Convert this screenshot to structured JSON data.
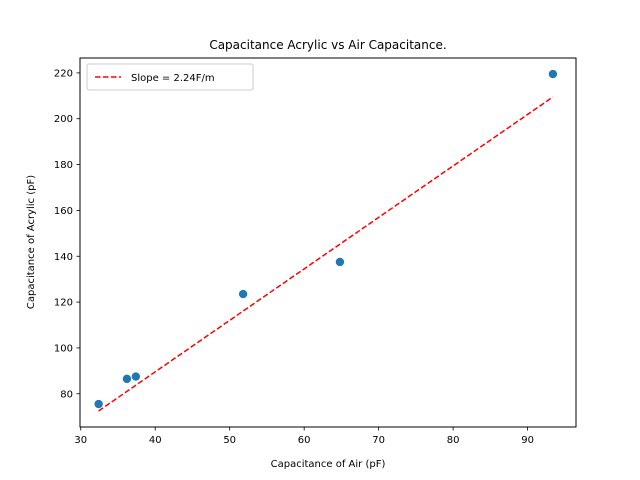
{
  "chart_data": {
    "type": "scatter",
    "title": "Capacitance Acrylic vs Air Capacitance.",
    "xlabel": "Capacitance of Air (pF)",
    "ylabel": "Capacitance of Acrylic (pF)",
    "xlim": [
      29.9,
      96.5
    ],
    "ylim": [
      65.5,
      226.5
    ],
    "xticks": [
      30,
      40,
      50,
      60,
      70,
      80,
      90
    ],
    "yticks": [
      80,
      100,
      120,
      140,
      160,
      180,
      200,
      220
    ],
    "grid": false,
    "legend_position": "top-left",
    "series": [
      {
        "kind": "scatter",
        "color": "#1f77b4",
        "x": [
          32.4,
          36.2,
          37.4,
          51.8,
          64.8,
          93.4
        ],
        "y": [
          75.5,
          86.5,
          87.5,
          123.5,
          137.5,
          219.5
        ]
      },
      {
        "kind": "line",
        "name": "Slope = 2.24F/m",
        "color": "#ff0000",
        "style": "dashed",
        "x": [
          32.4,
          93.4
        ],
        "y": [
          72.5,
          209.5
        ]
      }
    ]
  }
}
